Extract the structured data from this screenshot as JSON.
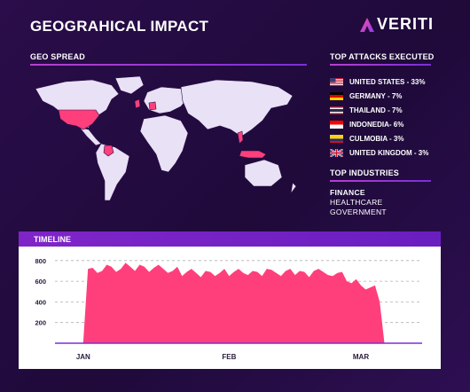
{
  "header": {
    "title": "GEOGRAHICAL IMPACT",
    "brand": "VERITI"
  },
  "geo": {
    "heading": "GEO SPREAD",
    "highlight_color": "#ff3f7c",
    "land_color": "#e9e1f5"
  },
  "attacks": {
    "heading": "TOP ATTACKS EXECUTED",
    "items": [
      {
        "label": "UNITED STATES - 33%",
        "flag": "us-flag-icon"
      },
      {
        "label": "GERMANY - 7%",
        "flag": "germany-flag-icon"
      },
      {
        "label": "THAILAND - 7%",
        "flag": "thailand-flag-icon"
      },
      {
        "label": "INDONEDIA- 6%",
        "flag": "indonesia-flag-icon"
      },
      {
        "label": "CULMOBIA - 3%",
        "flag": "colombia-flag-icon"
      },
      {
        "label": "UNITED KINGDOM - 3%",
        "flag": "uk-flag-icon"
      }
    ]
  },
  "industries": {
    "heading": "TOP INDUSTRIES",
    "items": [
      "FINANCE",
      "HEALTHCARE",
      "GOVERNMENT"
    ]
  },
  "timeline": {
    "heading": "TIMELINE"
  },
  "chart_data": {
    "type": "area",
    "title": "TIMELINE",
    "color": "#ff3f7c",
    "ylim": [
      0,
      850
    ],
    "yticks": [
      200,
      400,
      600,
      800
    ],
    "grid": "horizontal dashed",
    "xticks": [
      {
        "label": "JAN",
        "x": 0
      },
      {
        "label": "FEB",
        "x": 31
      },
      {
        "label": "MAR",
        "x": 59
      }
    ],
    "x": [
      -2,
      0,
      1,
      2,
      3,
      4,
      5,
      6,
      7,
      8,
      9,
      10,
      11,
      12,
      13,
      14,
      15,
      16,
      17,
      18,
      19,
      20,
      21,
      22,
      23,
      24,
      25,
      26,
      27,
      28,
      29,
      30,
      31,
      32,
      33,
      34,
      35,
      36,
      37,
      38,
      39,
      40,
      41,
      42,
      43,
      44,
      45,
      46,
      47,
      48,
      49,
      50,
      51,
      52,
      53,
      54,
      55,
      56,
      57,
      58,
      59,
      60,
      61,
      62,
      63,
      64
    ],
    "values": [
      0,
      0,
      720,
      730,
      680,
      700,
      760,
      740,
      690,
      720,
      780,
      740,
      700,
      760,
      740,
      690,
      730,
      760,
      720,
      680,
      700,
      740,
      650,
      690,
      720,
      680,
      640,
      700,
      690,
      650,
      680,
      720,
      650,
      690,
      720,
      680,
      660,
      700,
      690,
      650,
      720,
      710,
      680,
      650,
      700,
      720,
      660,
      700,
      690,
      640,
      700,
      720,
      690,
      660,
      650,
      680,
      690,
      600,
      580,
      620,
      560,
      520,
      540,
      560,
      400,
      0
    ]
  }
}
